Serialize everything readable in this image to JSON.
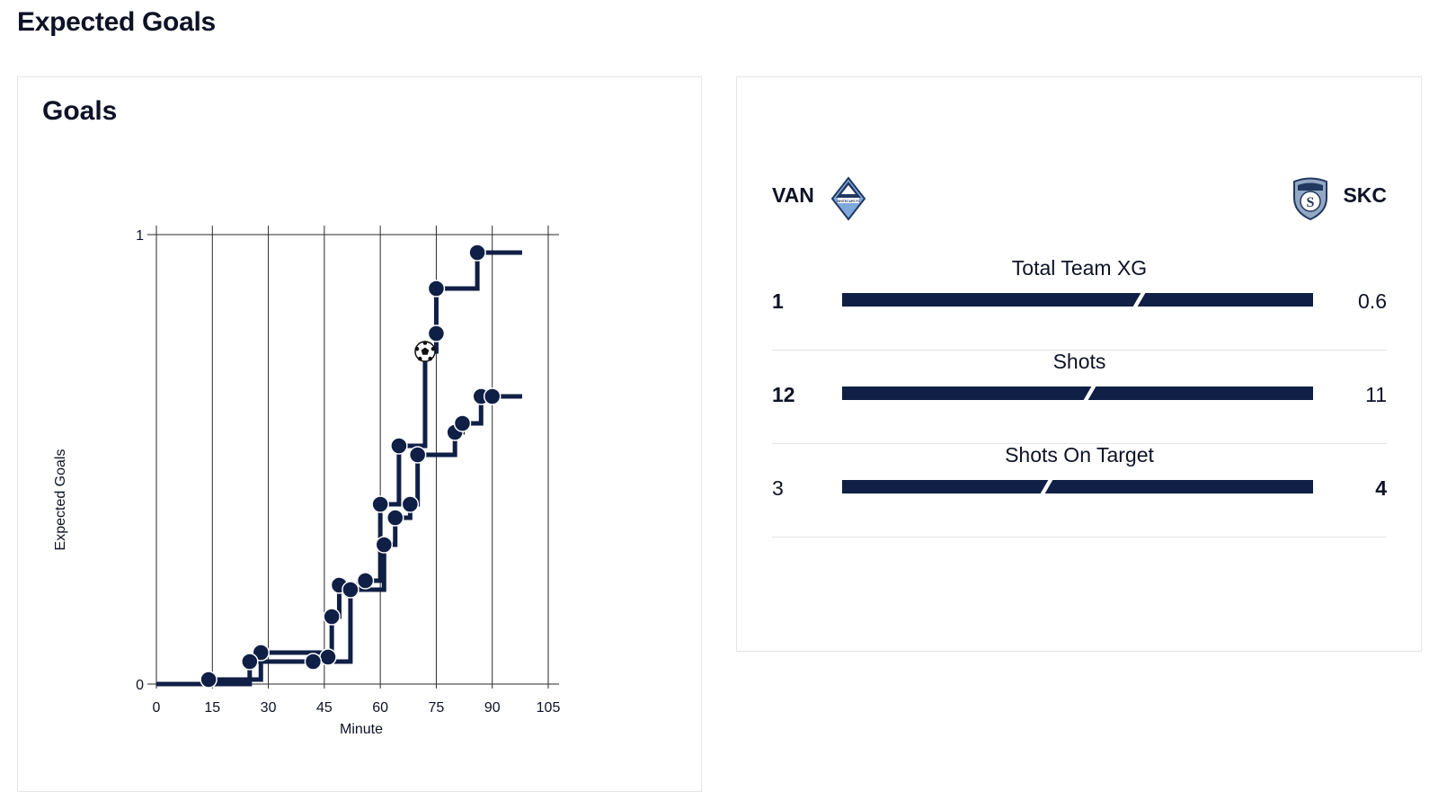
{
  "page_title": "Expected Goals",
  "goals_card": {
    "title": "Goals"
  },
  "chart_data": {
    "type": "line",
    "step": true,
    "xlabel": "Minute",
    "ylabel": "Expected Goals",
    "xlim": [
      0,
      105
    ],
    "ylim": [
      0,
      1
    ],
    "x_ticks": [
      0,
      15,
      30,
      45,
      60,
      75,
      90,
      105
    ],
    "y_ticks": [
      0,
      1
    ],
    "grid": "vertical",
    "series": [
      {
        "name": "VAN",
        "color": "#0f1f45",
        "end_minute": 98,
        "shots": [
          {
            "minute": 14,
            "xg": 0.01
          },
          {
            "minute": 28,
            "xg": 0.07
          },
          {
            "minute": 46,
            "xg": 0.06
          },
          {
            "minute": 47,
            "xg": 0.15
          },
          {
            "minute": 49,
            "xg": 0.22
          },
          {
            "minute": 56,
            "xg": 0.23
          },
          {
            "minute": 60,
            "xg": 0.4
          },
          {
            "minute": 65,
            "xg": 0.53
          },
          {
            "minute": 72,
            "xg": 0.74,
            "goal": true
          },
          {
            "minute": 75,
            "xg": 0.78
          },
          {
            "minute": 75,
            "xg": 0.88
          },
          {
            "minute": 86,
            "xg": 0.96
          }
        ]
      },
      {
        "name": "SKC",
        "color": "#0f1f45",
        "end_minute": 98,
        "shots": [
          {
            "minute": 25,
            "xg": 0.05
          },
          {
            "minute": 42,
            "xg": 0.05
          },
          {
            "minute": 52,
            "xg": 0.21
          },
          {
            "minute": 61,
            "xg": 0.31
          },
          {
            "minute": 64,
            "xg": 0.37
          },
          {
            "minute": 68,
            "xg": 0.4
          },
          {
            "minute": 70,
            "xg": 0.51
          },
          {
            "minute": 80,
            "xg": 0.56
          },
          {
            "minute": 82,
            "xg": 0.58
          },
          {
            "minute": 87,
            "xg": 0.64
          },
          {
            "minute": 90,
            "xg": 0.64
          }
        ]
      }
    ]
  },
  "comparison": {
    "home": {
      "abbr": "VAN",
      "logo_icon": "whitecaps-crest-icon",
      "logo_text": "WHITECAPS FC"
    },
    "away": {
      "abbr": "SKC",
      "logo_icon": "sporting-kc-crest-icon",
      "logo_text": "S"
    },
    "stats": [
      {
        "label": "Total Team XG",
        "home": "1",
        "away": "0.6",
        "home_value": 1.0,
        "away_value": 0.6,
        "leader": "home"
      },
      {
        "label": "Shots",
        "home": "12",
        "away": "11",
        "home_value": 12,
        "away_value": 11,
        "leader": "home"
      },
      {
        "label": "Shots On Target",
        "home": "3",
        "away": "4",
        "home_value": 3,
        "away_value": 4,
        "leader": "away"
      }
    ]
  },
  "colors": {
    "navy": "#0f1f45",
    "text": "#0d1226",
    "border": "#e3e4e8",
    "home_logo": "#6f9fd8"
  }
}
